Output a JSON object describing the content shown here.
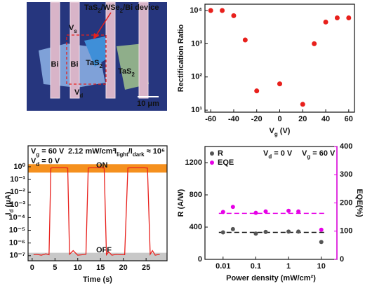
{
  "image": {
    "device_label": [
      {
        "t": "TaS"
      },
      {
        "t": "2",
        "sub": true
      },
      {
        "t": "/WSe"
      },
      {
        "t": "2",
        "sub": true
      },
      {
        "t": "/Bi device"
      }
    ],
    "vs": [
      {
        "t": "V"
      },
      {
        "t": "s",
        "sub": true
      }
    ],
    "vd": [
      {
        "t": "V"
      },
      {
        "t": "d",
        "sub": true
      }
    ],
    "bi_left": "Bi",
    "bi_right": "Bi",
    "tas2_center": [
      {
        "t": "TaS"
      },
      {
        "t": "2",
        "sub": true
      }
    ],
    "tas2_right": [
      {
        "t": "TaS"
      },
      {
        "t": "2",
        "sub": true
      }
    ],
    "scale_bar": "10 μm"
  },
  "chart_data": [
    {
      "type": "scatter",
      "ylabel": "Rectification Ratio",
      "xlabel": [
        {
          "t": "V"
        },
        {
          "t": "g",
          "sub": true
        },
        {
          "t": " (V)"
        }
      ],
      "x": [
        -60,
        -50,
        -40,
        -30,
        -20,
        0,
        20,
        30,
        40,
        50,
        60
      ],
      "values": [
        10000,
        10000,
        7000,
        1300,
        38,
        62,
        15,
        1000,
        4500,
        6000,
        6000
      ],
      "color": "#e8201c",
      "xlim": [
        -65,
        65
      ],
      "xticks": [
        -60,
        -40,
        -20,
        0,
        20,
        40,
        60
      ],
      "ylog": true,
      "ylim": [
        8.7,
        15500
      ],
      "yticks": [
        {
          "value": 10,
          "label": "10¹"
        },
        {
          "value": 100,
          "label": "10²"
        },
        {
          "value": 1000,
          "label": "10³"
        },
        {
          "value": 10000,
          "label": "10⁴"
        }
      ]
    },
    {
      "type": "line",
      "ylabel": [
        {
          "t": "I"
        },
        {
          "t": "d",
          "sub": true
        },
        {
          "t": " (μA)"
        }
      ],
      "xlabel": "Time (s)",
      "x": [
        0.3,
        1,
        2,
        3,
        3.7,
        4.1,
        4.5,
        5.5,
        6.5,
        7.3,
        7.8,
        8.2,
        9,
        10,
        11,
        11.8,
        12.3,
        12.8,
        14,
        15,
        15.8,
        16.3,
        16.8,
        17.5,
        18.5,
        19.5,
        20.3,
        21,
        21.5,
        22.5,
        23.5,
        24.5,
        25.3,
        25.9,
        26.4,
        27,
        28
      ],
      "values": [
        1.2e-07,
        1.3e-07,
        1.1e-07,
        1.4e-07,
        1.2e-07,
        0.8,
        0.85,
        0.85,
        0.85,
        0.85,
        0.8,
        1.3e-07,
        2.5e-07,
        1.1e-07,
        1.2e-07,
        1.3e-07,
        0.8,
        0.85,
        0.85,
        0.85,
        0.8,
        1.2e-07,
        2e-07,
        1.1e-07,
        1.3e-07,
        1.2e-07,
        1.2e-07,
        0.8,
        0.85,
        0.85,
        0.85,
        0.85,
        0.8,
        1.3e-07,
        2.5e-07,
        1.1e-07,
        1.3e-07
      ],
      "color": "#e8201c",
      "xlim": [
        -0.9,
        29.6
      ],
      "xticks": [
        0,
        5,
        10,
        15,
        20,
        25
      ],
      "ylog": true,
      "ylim": [
        4e-08,
        45
      ],
      "yticks": [
        {
          "value": 1e-07,
          "label": "10⁻⁷"
        },
        {
          "value": 1e-06,
          "label": "10⁻⁶"
        },
        {
          "value": 1e-05,
          "label": "10⁻⁵"
        },
        {
          "value": 0.0001,
          "label": "10⁻⁴"
        },
        {
          "value": 0.001,
          "label": "10⁻³"
        },
        {
          "value": 0.01,
          "label": "10⁻²"
        },
        {
          "value": 0.1,
          "label": "10⁻¹"
        },
        {
          "value": 1,
          "label": "10⁰"
        }
      ],
      "bands": [
        {
          "range": [
            0.35,
            1.6
          ],
          "color": "#f5901e"
        },
        {
          "range": [
            4e-08,
            1.7e-07
          ],
          "color": "#c8c8c8"
        }
      ],
      "annotations": [
        [
          {
            "t": "V"
          },
          {
            "t": "g",
            "sub": true
          },
          {
            "t": " = 60 V"
          }
        ],
        "2.12 mW/cm²",
        [
          {
            "t": "I"
          },
          {
            "t": "light",
            "sub": true
          },
          {
            "t": "/I"
          },
          {
            "t": "dark",
            "sub": true
          },
          {
            "t": " ≈ 10⁶"
          }
        ],
        [
          {
            "t": "V"
          },
          {
            "t": "d",
            "sub": true
          },
          {
            "t": " = 0 V"
          }
        ],
        "ON",
        "OFF"
      ]
    },
    {
      "type": "scatter",
      "ylabel": "R (A/W)",
      "y2label": "EQE(%)",
      "xlabel": "Power density (mW/cm²)",
      "x": [
        0.01,
        0.02,
        0.1,
        0.2,
        1,
        2,
        10
      ],
      "xlog": true,
      "xlim": [
        0.0028,
        30
      ],
      "xticks": [
        0.01,
        0.1,
        1,
        10
      ],
      "ylim": [
        0,
        1400
      ],
      "yticks": [
        0,
        400,
        800,
        1200
      ],
      "y2lim": [
        0,
        400
      ],
      "y2ticks": [
        0,
        100,
        200,
        300,
        400
      ],
      "series": [
        {
          "name": "R",
          "color": "#555555",
          "values": [
            335,
            375,
            320,
            340,
            345,
            345,
            215
          ],
          "reference_level": 335
        },
        {
          "name": "EQE",
          "color": "#e600e6",
          "axis": "y2",
          "values": [
            168,
            186,
            165,
            170,
            172,
            170,
            105
          ],
          "reference_level": 163
        }
      ],
      "annotations": [
        [
          {
            "t": "V"
          },
          {
            "t": "d",
            "sub": true
          },
          {
            "t": " = 0 V"
          }
        ],
        [
          {
            "t": "V"
          },
          {
            "t": "g",
            "sub": true
          },
          {
            "t": " = 60 V"
          }
        ]
      ]
    }
  ]
}
